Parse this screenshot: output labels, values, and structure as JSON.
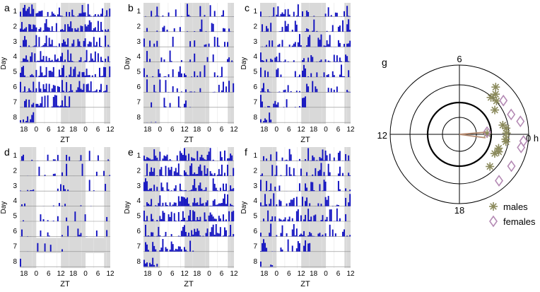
{
  "colors": {
    "bar": "#1010c0",
    "shade": "#d9d9d9",
    "baseline": "#8a8a8a",
    "grid": "#e6e6e6",
    "male": "#8b8a5c",
    "female": "#b48ab4",
    "ring": "#000000",
    "vector": "#b48a70"
  },
  "actograms": {
    "ylabel": "Day",
    "xlabel": "ZT",
    "xticks": [
      "18",
      "0",
      "6",
      "12",
      "18",
      "0",
      "6",
      "12"
    ],
    "panels": [
      {
        "letter": "a",
        "days": [
          "1",
          "2",
          "3",
          "4",
          "5",
          "6",
          "7",
          "8"
        ],
        "active_days": [
          1,
          2,
          3,
          4,
          5,
          6,
          7,
          8
        ],
        "extra_shade": [],
        "activity": "high"
      },
      {
        "letter": "b",
        "days": [
          "1",
          "2",
          "3",
          "4",
          "5",
          "6",
          "7",
          "8"
        ],
        "active_days": [
          1,
          2,
          3,
          4,
          5,
          6,
          7,
          8
        ],
        "extra_shade": [],
        "activity": "low"
      },
      {
        "letter": "c",
        "days": [
          "1",
          "2",
          "3",
          "4",
          "5",
          "6",
          "7",
          "8"
        ],
        "active_days": [
          1,
          2,
          3,
          4,
          5,
          6,
          7,
          8
        ],
        "extra_shade": [],
        "activity": "mid"
      },
      {
        "letter": "d",
        "days": [
          "1",
          "2",
          "3",
          "4",
          "5",
          "6",
          "7",
          "8"
        ],
        "active_days": [
          1,
          2,
          3,
          4,
          5,
          6,
          7,
          8
        ],
        "extra_shade": [
          7
        ],
        "activity": "sparse"
      },
      {
        "letter": "e",
        "days": [
          "1",
          "2",
          "3",
          "4",
          "5",
          "6",
          "7",
          "8"
        ],
        "active_days": [
          1,
          2,
          3,
          4,
          5,
          6,
          7,
          8
        ],
        "extra_shade": [],
        "activity": "high"
      },
      {
        "letter": "f",
        "days": [
          "1",
          "2",
          "3",
          "4",
          "5",
          "6",
          "7",
          "8"
        ],
        "active_days": [
          1,
          2,
          3,
          4,
          5,
          6,
          7,
          8
        ],
        "extra_shade": [],
        "activity": "mid"
      }
    ]
  },
  "chart_data": {
    "type": "scatter",
    "projection": "polar",
    "panel": "g",
    "unit": "ZT hours",
    "angle_labels": {
      "zt0": "0 h",
      "zt6": "6",
      "zt12": "12",
      "zt18": "18"
    },
    "radial_range": [
      0,
      1
    ],
    "series": [
      {
        "name": "males",
        "marker": "asterisk",
        "points": [
          {
            "zt": 3.5,
            "r": 0.86
          },
          {
            "zt": 3.2,
            "r": 0.78
          },
          {
            "zt": 3.3,
            "r": 0.7
          },
          {
            "zt": 2.8,
            "r": 0.72
          },
          {
            "zt": 2.3,
            "r": 0.62
          },
          {
            "zt": 0.8,
            "r": 0.64
          },
          {
            "zt": 0.5,
            "r": 0.68
          },
          {
            "zt": 0.1,
            "r": 0.68
          },
          {
            "zt": 23.6,
            "r": 0.67
          },
          {
            "zt": 23.4,
            "r": 0.68
          },
          {
            "zt": 22.7,
            "r": 0.6
          },
          {
            "zt": 22.4,
            "r": 0.62
          },
          {
            "zt": 22.1,
            "r": 0.58
          },
          {
            "zt": 20.9,
            "r": 0.64
          },
          {
            "zt": 0.1,
            "r": 0.4
          }
        ]
      },
      {
        "name": "females",
        "marker": "diamond",
        "points": [
          {
            "zt": 2.5,
            "r": 0.8
          },
          {
            "zt": 1.4,
            "r": 0.8
          },
          {
            "zt": 0.8,
            "r": 0.9
          },
          {
            "zt": 23.6,
            "r": 0.93
          },
          {
            "zt": 23.2,
            "r": 0.91
          },
          {
            "zt": 21.9,
            "r": 0.88
          },
          {
            "zt": 20.7,
            "r": 0.88
          },
          {
            "zt": 0.3,
            "r": 0.4
          }
        ]
      }
    ],
    "mean_vectors": [
      {
        "name": "males",
        "zt": 23.5,
        "r": 0.38
      },
      {
        "name": "females",
        "zt": 0.3,
        "r": 0.38
      }
    ],
    "legend": [
      {
        "label": "males",
        "marker": "asterisk"
      },
      {
        "label": "females",
        "marker": "diamond"
      }
    ]
  }
}
